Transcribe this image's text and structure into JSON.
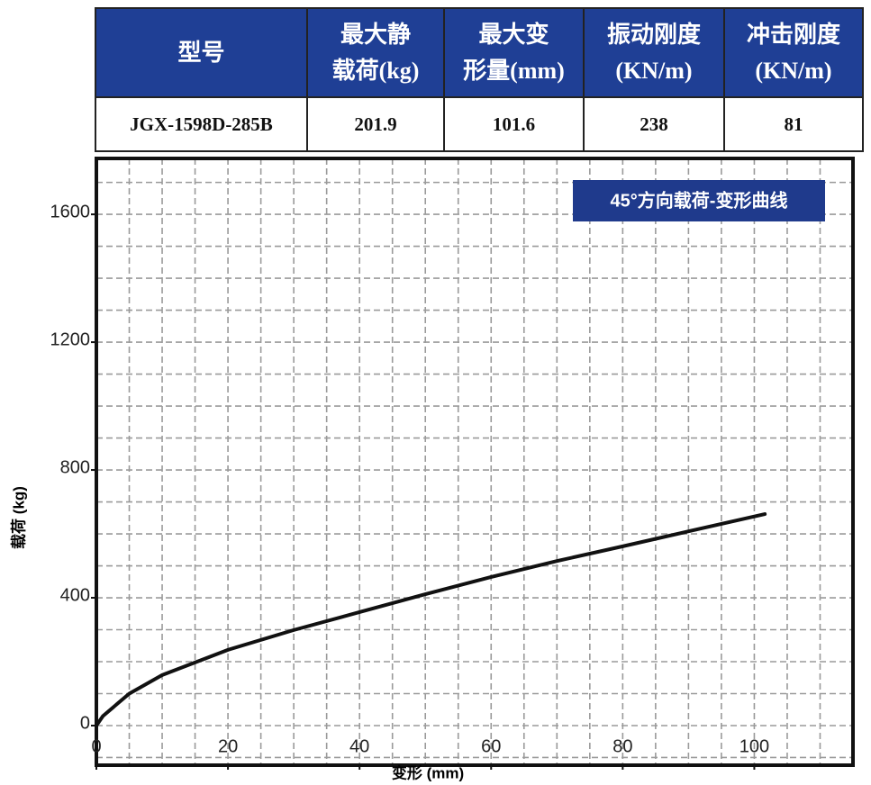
{
  "table": {
    "header": [
      [
        "型号"
      ],
      [
        "最大静",
        "载荷(kg)"
      ],
      [
        "最大变",
        "形量(mm)"
      ],
      [
        "振动刚度",
        "(KN/m)"
      ],
      [
        "冲击刚度",
        "(KN/m)"
      ]
    ],
    "rows": [
      [
        "JGX-1598D-285B",
        "201.9",
        "101.6",
        "238",
        "81"
      ]
    ]
  },
  "chart_data": {
    "type": "line",
    "title": "45°方向载荷-变形曲线",
    "x_label": "变形 (mm)",
    "y_label": "载荷 (kg)",
    "x": [
      0,
      1,
      5,
      10,
      20,
      30,
      40,
      50,
      60,
      70,
      80,
      90,
      101.6
    ],
    "series": [
      {
        "name": "载荷",
        "color": "#111111",
        "values": [
          0,
          30,
          100,
          158,
          237,
          299,
          355,
          411,
          465,
          515,
          561,
          608,
          662
        ]
      }
    ],
    "xlim": [
      0,
      115
    ],
    "ylim": [
      -124,
      1775
    ],
    "xticks": [
      0,
      20,
      40,
      60,
      80,
      100
    ],
    "yticks": [
      0,
      400,
      800,
      1200,
      1600
    ],
    "grid": true,
    "x_grid_step": 5,
    "y_grid_step": 100
  }
}
